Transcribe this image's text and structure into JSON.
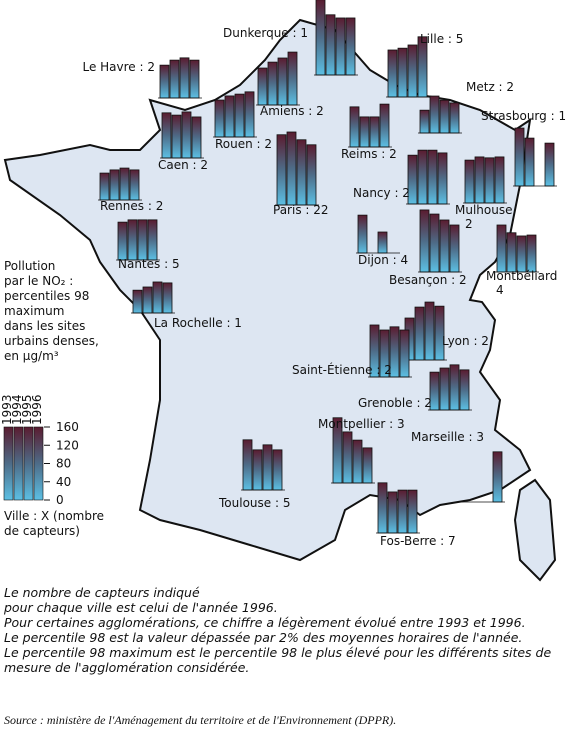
{
  "map": {
    "cities": [
      {
        "label": [
          "Dunkerque : 1"
        ],
        "values": [
          165,
          132,
          125,
          125
        ]
      },
      {
        "label": [
          "Lille : 5"
        ],
        "values": [
          103,
          107,
          114,
          132
        ]
      },
      {
        "label": [
          "Le Havre : 2"
        ],
        "values": [
          72,
          83,
          88,
          83
        ]
      },
      {
        "label": [
          "Amiens : 2"
        ],
        "values": [
          81,
          94,
          103,
          116
        ]
      },
      {
        "label": [
          "Metz : 2"
        ],
        "values": [
          50,
          81,
          72,
          66
        ]
      },
      {
        "label": [
          "Strasbourg : 1"
        ],
        "values": [
          127,
          105,
          null,
          94
        ]
      },
      {
        "label": [
          "Rouen : 2"
        ],
        "values": [
          81,
          90,
          94,
          99
        ]
      },
      {
        "label": [
          "Caen : 2"
        ],
        "values": [
          99,
          94,
          101,
          90
        ]
      },
      {
        "label": [
          "Reims : 2"
        ],
        "values": [
          88,
          66,
          66,
          94
        ]
      },
      {
        "label": [
          "Paris : 22"
        ],
        "values": [
          154,
          160,
          143,
          132
        ]
      },
      {
        "label": [
          "Nancy : 2"
        ],
        "values": [
          107,
          118,
          118,
          112
        ]
      },
      {
        "label": [
          "Mulhouse",
          "2"
        ],
        "values": [
          94,
          101,
          99,
          101
        ]
      },
      {
        "label": [
          "Rennes : 2"
        ],
        "values": [
          59,
          66,
          70,
          66
        ]
      },
      {
        "label": [
          "Nantes : 5"
        ],
        "values": [
          83,
          88,
          88,
          88
        ]
      },
      {
        "label": [
          "Dijon : 4"
        ],
        "values": [
          83,
          null,
          46,
          null
        ]
      },
      {
        "label": [
          "Besançon : 2"
        ],
        "values": [
          136,
          127,
          114,
          103
        ]
      },
      {
        "label": [
          "Montbéliard",
          "4"
        ],
        "values": [
          103,
          86,
          79,
          81
        ]
      },
      {
        "label": [
          "La Rochelle : 1"
        ],
        "values": [
          50,
          57,
          68,
          66
        ]
      },
      {
        "label": [
          "Lyon : 2"
        ],
        "values": [
          92,
          116,
          127,
          118
        ]
      },
      {
        "label": [
          "Saint-Étienne : 2"
        ],
        "values": [
          114,
          103,
          110,
          103
        ]
      },
      {
        "label": [
          "Grenoble : 2"
        ],
        "values": [
          83,
          92,
          99,
          88
        ]
      },
      {
        "label": [
          "Montpellier : 3"
        ],
        "values": [
          143,
          112,
          94,
          77
        ]
      },
      {
        "label": [
          "Marseille : 3"
        ],
        "values": [
          null,
          null,
          null,
          110
        ]
      },
      {
        "label": [
          "Toulouse : 5"
        ],
        "values": [
          110,
          88,
          99,
          88
        ]
      },
      {
        "label": [
          "Fos-Berre : 7"
        ],
        "values": [
          110,
          90,
          94,
          94
        ]
      }
    ],
    "legend": {
      "title_lines": [
        "Pollution",
        "par le NO₂ :",
        "percentiles 98",
        "maximum",
        "dans les sites",
        "urbains denses,",
        "en µg/m³"
      ],
      "years": [
        "1993",
        "1994",
        "1995",
        "1996"
      ],
      "ylim": [
        0,
        160
      ],
      "yticks": [
        0,
        40,
        80,
        120,
        160
      ],
      "caption_lines": [
        "Ville : X (nombre",
        "de capteurs)"
      ]
    },
    "notes": [
      "Le nombre de capteurs indiqué",
      "pour chaque ville est celui de l'année 1996.",
      "Pour certaines agglomérations, ce chiffre a légèrement évolué entre 1993 et 1996.",
      "Le percentile 98  est la valeur dépassée par 2% des moyennes horaires de l'année.",
      "Le percentile 98 maximum est le percentile 98 le plus élevé pour les différents sites de",
      "mesure de l'agglomération considérée."
    ],
    "source": "Source : ministère de l'Aménagement du territoire et de l'Environnement (DPPR)."
  }
}
